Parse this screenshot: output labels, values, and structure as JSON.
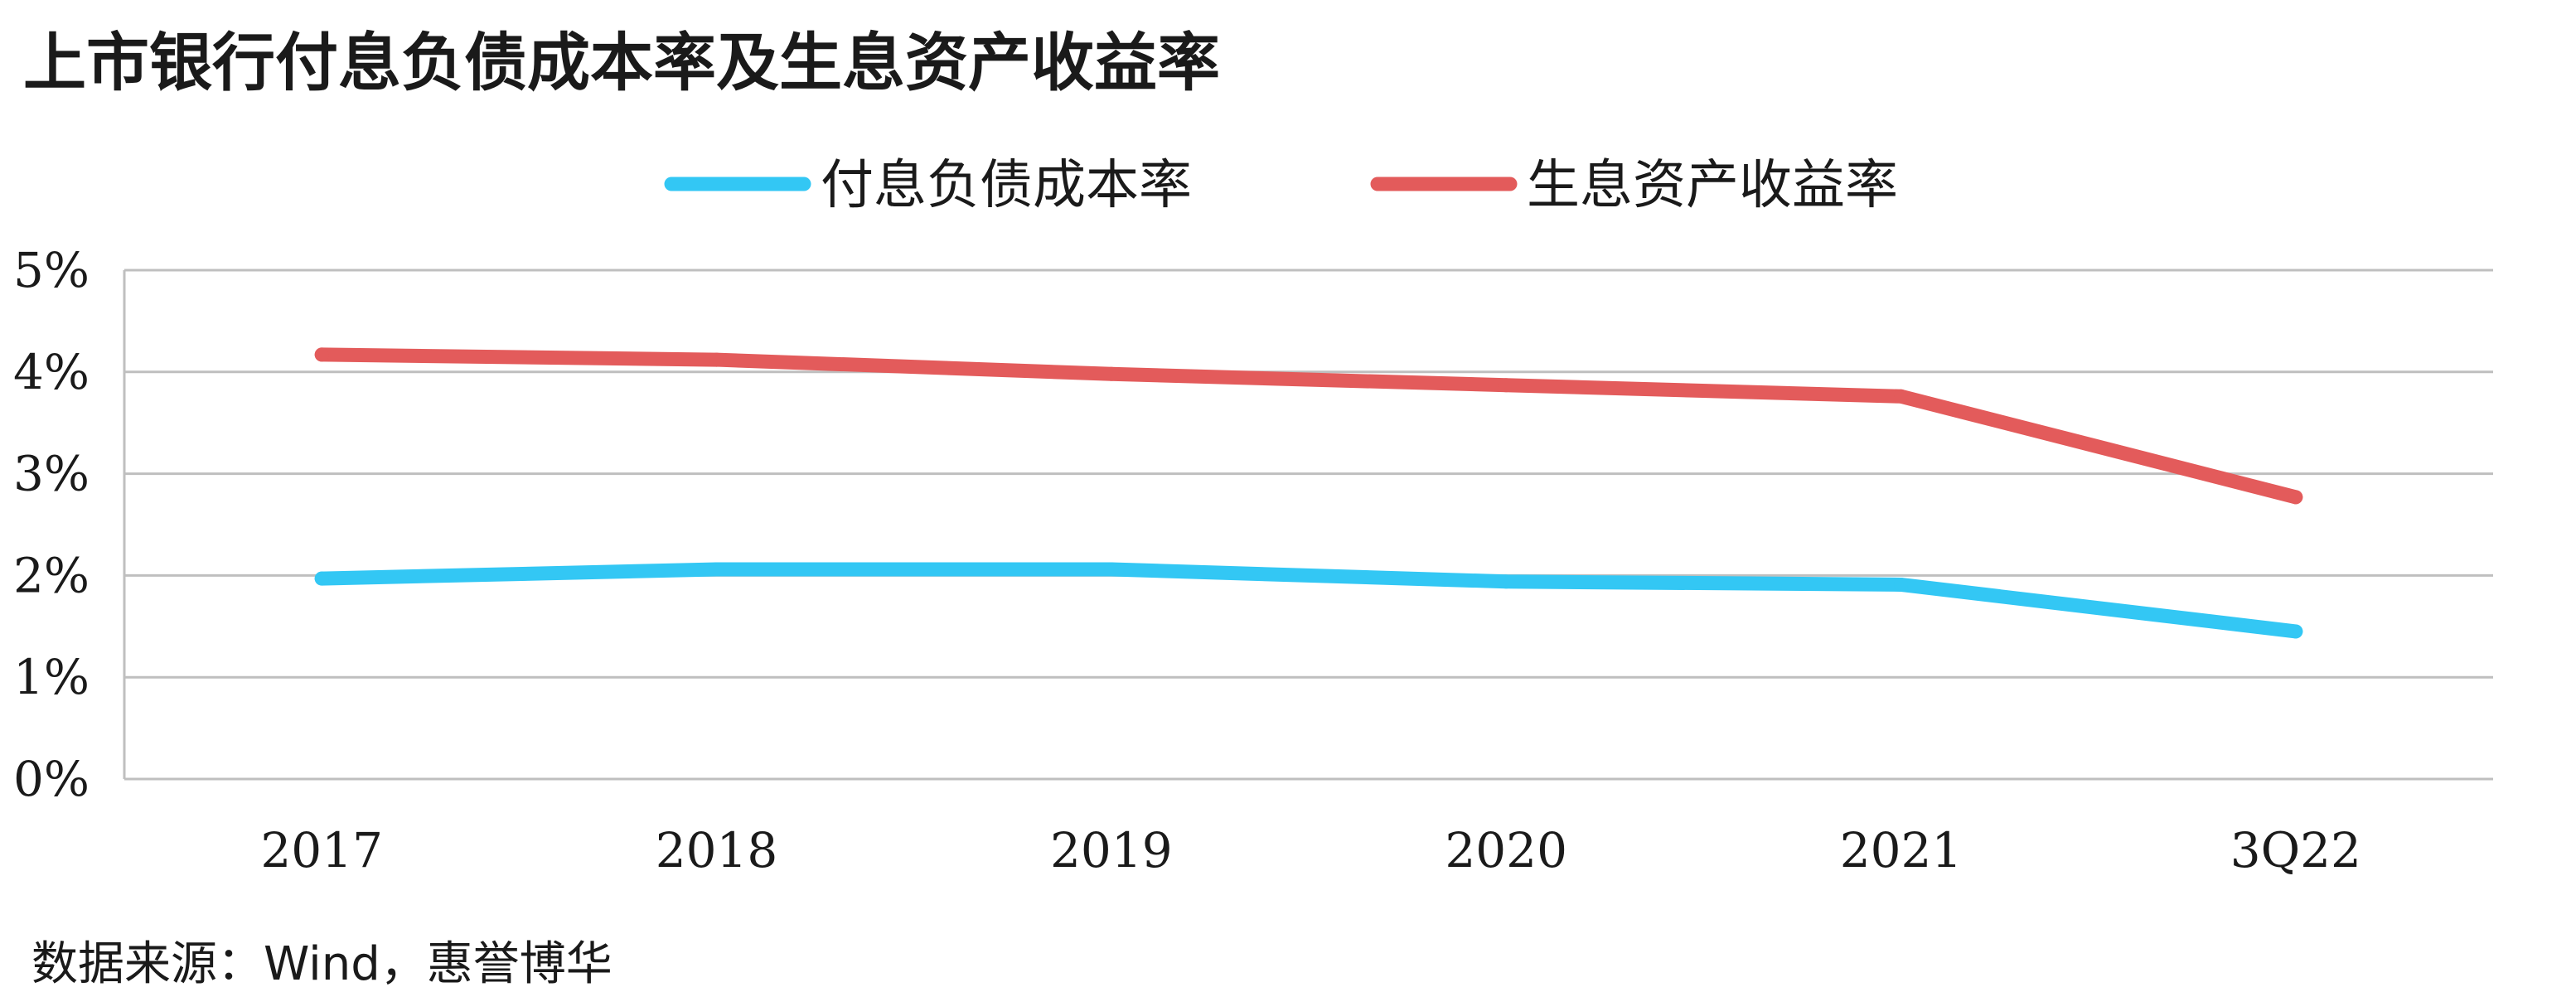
{
  "chart_data": {
    "type": "line",
    "title": "上市银行付息负债成本率及生息资产收益率",
    "categories": [
      "2017",
      "2018",
      "2019",
      "2020",
      "2021",
      "3Q22"
    ],
    "series": [
      {
        "name": "付息负债成本率",
        "color": "#33c7f4",
        "values": [
          1.97,
          2.06,
          2.06,
          1.94,
          1.91,
          1.45
        ]
      },
      {
        "name": "生息资产收益率",
        "color": "#e35b5b",
        "values": [
          4.17,
          4.12,
          3.98,
          3.87,
          3.76,
          2.77
        ]
      }
    ],
    "y_ticks": [
      "0%",
      "1%",
      "2%",
      "3%",
      "4%",
      "5%"
    ],
    "ylim": [
      0,
      5
    ],
    "ylabel_unit": "%",
    "grid": true,
    "legend_position": "top-center",
    "source": "数据来源：Wind，惠誉博华"
  }
}
